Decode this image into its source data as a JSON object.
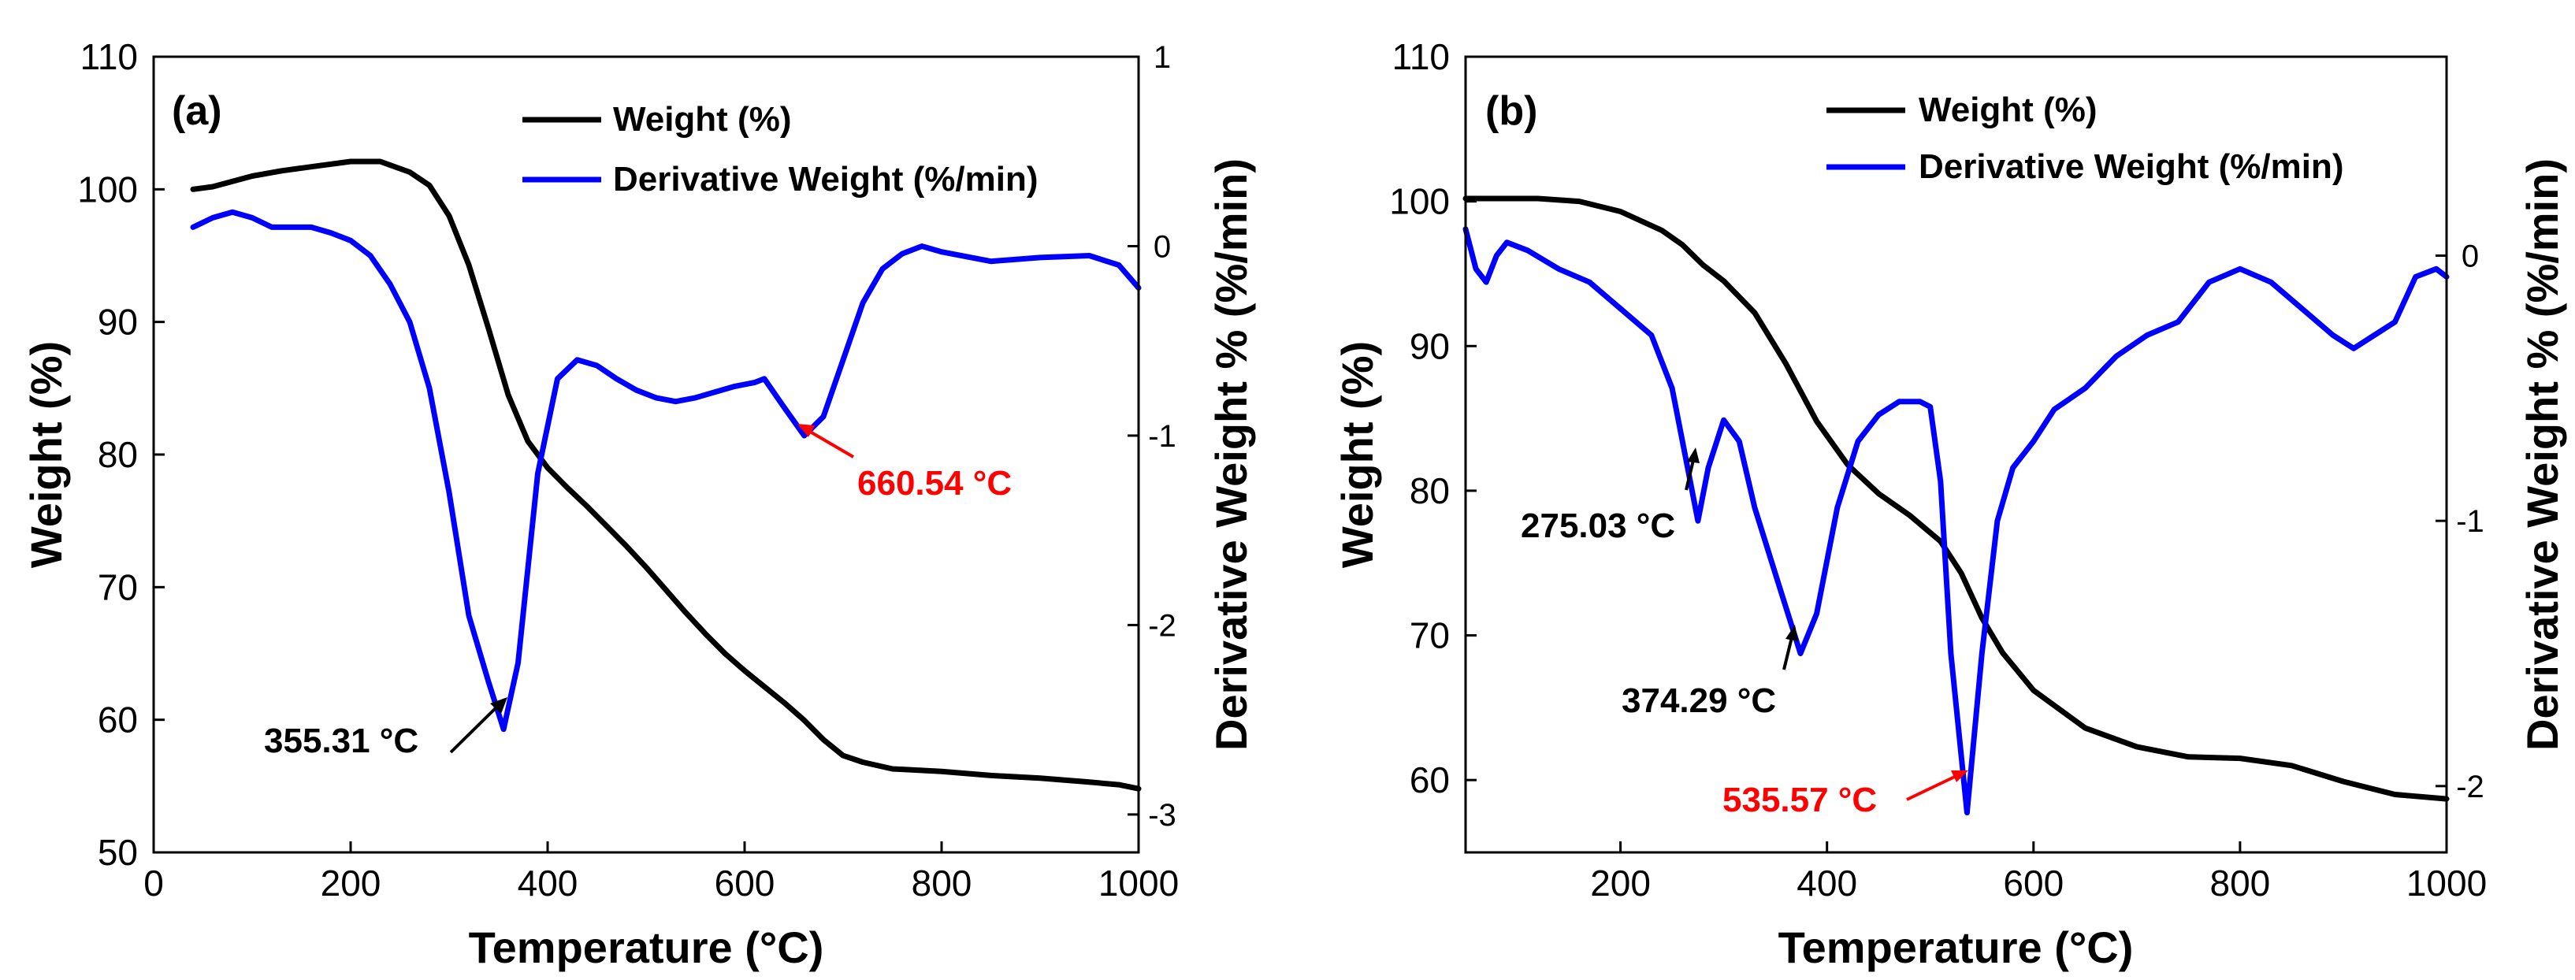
{
  "chart_data": [
    {
      "type": "line",
      "panel_label": "(a)",
      "xlabel": "Temperature (°C)",
      "ylabel": "Weight (%)",
      "y2label": "Derivative Weight % (%/min)",
      "xlim": [
        0,
        1000
      ],
      "ylim": [
        50,
        110
      ],
      "y2lim": [
        -3.2,
        1.0
      ],
      "xticks": [
        "0",
        "200",
        "400",
        "600",
        "800",
        "1000"
      ],
      "yticks": [
        "50",
        "60",
        "70",
        "80",
        "90",
        "100",
        "110"
      ],
      "y2ticks": [
        "-3",
        "-2",
        "-1",
        "0",
        "1"
      ],
      "legend_position": "top-center",
      "series": [
        {
          "name": "Weight (%)",
          "axis": "left",
          "color": "#000000",
          "x": [
            40,
            60,
            80,
            100,
            130,
            160,
            200,
            230,
            260,
            280,
            300,
            320,
            340,
            360,
            380,
            400,
            420,
            440,
            460,
            480,
            500,
            520,
            540,
            560,
            580,
            600,
            620,
            640,
            660,
            680,
            700,
            720,
            750,
            800,
            850,
            900,
            950,
            980,
            1000
          ],
          "y": [
            100.0,
            100.2,
            100.6,
            101.0,
            101.4,
            101.7,
            102.1,
            102.1,
            101.3,
            100.3,
            98.0,
            94.3,
            89.5,
            84.5,
            81.0,
            79.0,
            77.5,
            76.1,
            74.6,
            73.1,
            71.5,
            69.8,
            68.1,
            66.5,
            65.0,
            63.7,
            62.5,
            61.3,
            60.0,
            58.5,
            57.3,
            56.8,
            56.3,
            56.1,
            55.8,
            55.6,
            55.3,
            55.1,
            54.8
          ]
        },
        {
          "name": "Derivative Weight (%/min)",
          "axis": "right",
          "color": "#0000ff",
          "x": [
            40,
            60,
            80,
            100,
            120,
            140,
            160,
            180,
            200,
            220,
            240,
            260,
            280,
            300,
            320,
            340,
            355.31,
            370,
            390,
            410,
            430,
            450,
            470,
            490,
            510,
            530,
            550,
            570,
            590,
            610,
            620,
            640,
            660.54,
            680,
            700,
            720,
            740,
            760,
            780,
            800,
            850,
            900,
            950,
            980,
            1000
          ],
          "y": [
            0.1,
            0.15,
            0.18,
            0.15,
            0.1,
            0.1,
            0.1,
            0.07,
            0.03,
            -0.05,
            -0.2,
            -0.4,
            -0.75,
            -1.3,
            -1.95,
            -2.3,
            -2.55,
            -2.2,
            -1.2,
            -0.7,
            -0.6,
            -0.63,
            -0.7,
            -0.76,
            -0.8,
            -0.82,
            -0.8,
            -0.77,
            -0.74,
            -0.72,
            -0.7,
            -0.85,
            -1.0,
            -0.9,
            -0.6,
            -0.3,
            -0.12,
            -0.04,
            0.0,
            -0.03,
            -0.08,
            -0.06,
            -0.05,
            -0.1,
            -0.22
          ]
        }
      ],
      "annotations": [
        {
          "text": "355.31 °C",
          "x": 355.31,
          "y2": -2.55,
          "color": "#000000"
        },
        {
          "text": "660.54 °C",
          "x": 660.54,
          "y2": -1.0,
          "color": "#ff0000"
        }
      ]
    },
    {
      "type": "line",
      "panel_label": "(b)",
      "xlabel": "Temperature (°C)",
      "ylabel": "Weight (%)",
      "y2label": "Derivative Weight % (%/min)",
      "xlim": [
        50,
        1000
      ],
      "ylim": [
        55,
        110
      ],
      "y2lim": [
        -2.25,
        0.75
      ],
      "xticks": [
        "200",
        "400",
        "600",
        "800",
        "1000"
      ],
      "yticks": [
        "60",
        "70",
        "80",
        "90",
        "100",
        "110"
      ],
      "y2ticks": [
        "-2",
        "-1",
        "0"
      ],
      "legend_position": "top-center",
      "series": [
        {
          "name": "Weight (%)",
          "axis": "left",
          "color": "#000000",
          "x": [
            50,
            80,
            120,
            160,
            200,
            240,
            260,
            280,
            300,
            330,
            360,
            390,
            420,
            450,
            480,
            510,
            530,
            550,
            570,
            600,
            650,
            700,
            750,
            800,
            850,
            900,
            950,
            1000
          ],
          "y": [
            100.2,
            100.2,
            100.2,
            100.0,
            99.3,
            98.0,
            97.0,
            95.6,
            94.5,
            92.3,
            88.8,
            84.8,
            81.8,
            79.8,
            78.3,
            76.5,
            74.3,
            71.2,
            68.8,
            66.2,
            63.6,
            62.3,
            61.6,
            61.5,
            61.0,
            59.9,
            59.0,
            58.7
          ]
        },
        {
          "name": "Derivative Weight (%/min)",
          "axis": "right",
          "color": "#0000ff",
          "x": [
            50,
            60,
            70,
            80,
            90,
            110,
            140,
            170,
            200,
            230,
            250,
            265,
            275.03,
            285,
            300,
            315,
            330,
            350,
            374.29,
            390,
            410,
            430,
            450,
            470,
            490,
            500,
            510,
            520,
            535.57,
            550,
            565,
            580,
            600,
            620,
            650,
            680,
            710,
            740,
            770,
            800,
            830,
            860,
            890,
            910,
            930,
            950,
            970,
            990,
            1000
          ],
          "y": [
            0.1,
            -0.05,
            -0.1,
            0.0,
            0.05,
            0.02,
            -0.05,
            -0.1,
            -0.2,
            -0.3,
            -0.5,
            -0.8,
            -1.0,
            -0.8,
            -0.62,
            -0.7,
            -0.95,
            -1.2,
            -1.5,
            -1.35,
            -0.95,
            -0.7,
            -0.6,
            -0.55,
            -0.55,
            -0.57,
            -0.85,
            -1.5,
            -2.1,
            -1.5,
            -1.0,
            -0.8,
            -0.7,
            -0.58,
            -0.5,
            -0.38,
            -0.3,
            -0.25,
            -0.1,
            -0.05,
            -0.1,
            -0.2,
            -0.3,
            -0.35,
            -0.3,
            -0.25,
            -0.08,
            -0.05,
            -0.08
          ]
        }
      ],
      "annotations": [
        {
          "text": "275.03 °C",
          "x": 275.03,
          "y2": -1.0,
          "color": "#000000"
        },
        {
          "text": "374.29 °C",
          "x": 374.29,
          "y2": -1.5,
          "color": "#000000"
        },
        {
          "text": "535.57 °C",
          "x": 535.57,
          "y2": -2.1,
          "color": "#ff0000"
        }
      ]
    }
  ]
}
